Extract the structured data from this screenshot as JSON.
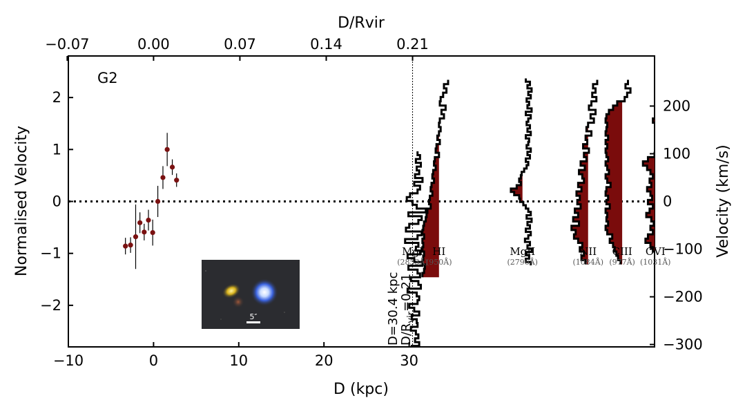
{
  "chart_data": {
    "type": "scatter",
    "panel_label": "G2",
    "xlabel_bottom": "D (kpc)",
    "xlabel_top": "D/Rvir",
    "ylabel_left": "Normalised Velocity",
    "ylabel_right": "Velocity (km/s)",
    "xlim": [
      -10,
      58.8
    ],
    "ylim_left": [
      -2.8,
      2.8
    ],
    "ylim_right": [
      -305,
      305
    ],
    "x_ticks_bottom": [
      -10,
      0,
      10,
      20,
      30
    ],
    "x_tick_labels_bottom": [
      "−10",
      "0",
      "10",
      "20",
      "30"
    ],
    "x_ticks_top": [
      -0.07,
      0.0,
      0.07,
      0.14,
      0.21
    ],
    "x_tick_labels_top": [
      "−0.07",
      "0.00",
      "0.07",
      "0.14",
      "0.21"
    ],
    "kpc_per_rvir_unit": 144.76,
    "y_ticks_left": [
      -2,
      -1,
      0,
      1,
      2
    ],
    "y_tick_labels_left": [
      "−2",
      "−1",
      "0",
      "1",
      "2"
    ],
    "y_ticks_right": [
      -300,
      -200,
      -100,
      0,
      100,
      200
    ],
    "y_tick_labels_right": [
      "−300",
      "−200",
      "−100",
      "0",
      "100",
      "200"
    ],
    "zero_line": 0,
    "rotation_curve": {
      "name": "rotation curve",
      "x": [
        -3.3,
        -2.7,
        -2.1,
        -1.6,
        -1.1,
        -0.6,
        -0.1,
        0.5,
        1.1,
        1.6,
        2.2,
        2.7
      ],
      "y": [
        -0.86,
        -0.84,
        -0.68,
        -0.41,
        -0.59,
        -0.36,
        -0.6,
        0.0,
        0.46,
        1.0,
        0.66,
        0.41
      ],
      "yerr": [
        0.16,
        0.15,
        0.62,
        0.2,
        0.16,
        0.2,
        0.25,
        0.3,
        0.22,
        0.32,
        0.15,
        0.13
      ],
      "color": "#7a1111"
    },
    "sightline": {
      "x": 30.4,
      "label_line1": "D=30.4 kpc",
      "label_line2_prefix": "D/R",
      "label_line2_sub": "vir",
      "label_line2_suffix": "=0.21"
    },
    "inset_image": {
      "scale_label": "5″"
    },
    "absorption_profiles": [
      {
        "ion": "MgI",
        "wavelength": "(2853Å)",
        "fill": false,
        "offset_kpc": 0.0,
        "v_start": 105,
        "v_step": 8,
        "flux": [
          0.3,
          0.45,
          0.2,
          0.5,
          0.25,
          0.4,
          0.15,
          0.6,
          0.1,
          0.45,
          0.3,
          -0.15,
          -0.35,
          0.0,
          0.25,
          0.8,
          -0.25,
          0.55,
          0.35,
          -0.2,
          -0.4,
          0.55,
          0.3,
          -0.45,
          0.35,
          0.2,
          0.45,
          -0.3,
          0.1,
          0.6,
          -0.25,
          0.3,
          0.45,
          -0.1,
          0.35,
          0.5,
          -0.3,
          0.25,
          0.4,
          0.3,
          -0.2,
          0.1,
          0.4,
          -0.05,
          0.25,
          0.3,
          -0.1,
          0.2,
          0.35,
          0.15,
          0.4,
          -0.05,
          0.25,
          0.3,
          0.1,
          0.2
        ]
      },
      {
        "ion": "HI",
        "wavelength": "(950Å)",
        "fill": true,
        "offset_kpc": 3.1,
        "v_start": 255,
        "v_step": 9,
        "flux": [
          0.55,
          0.3,
          0.45,
          0.25,
          0.1,
          0.05,
          0.4,
          0.15,
          0.3,
          0.05,
          0.0,
          0.1,
          0.0,
          -0.1,
          0.05,
          -0.15,
          -0.2,
          0.0,
          -0.25,
          -0.3,
          -0.2,
          -0.35,
          -0.4,
          -0.3,
          -0.45,
          -0.5,
          -0.4,
          -0.55,
          -0.6,
          -0.5,
          -0.7,
          -0.75,
          -0.8,
          -0.9,
          -0.95,
          -1.0,
          -0.9,
          -1.0,
          -0.95,
          -1.0,
          -0.9,
          -0.95,
          -1.0,
          -0.85,
          -0.9,
          -1.0
        ]
      },
      {
        "ion": "MgII",
        "wavelength": "(2796Å)",
        "fill": true,
        "offset_kpc": 12.9,
        "v_start": 258,
        "v_step": 7,
        "flux": [
          0.2,
          0.45,
          0.3,
          0.55,
          0.35,
          0.5,
          0.25,
          0.4,
          0.3,
          0.55,
          0.2,
          0.5,
          0.35,
          0.25,
          0.45,
          0.3,
          0.5,
          0.2,
          0.4,
          0.35,
          0.25,
          0.5,
          0.3,
          0.45,
          0.2,
          0.35,
          0.25,
          0.1,
          -0.05,
          -0.1,
          -0.2,
          -0.1,
          -0.35,
          -0.7,
          -0.5,
          -0.2,
          -0.15,
          0.05,
          0.2,
          0.35,
          0.5,
          0.25,
          0.55,
          0.3,
          0.45,
          0.2,
          0.5,
          0.35,
          0.15,
          0.45,
          0.3,
          0.55,
          0.25,
          0.4,
          0.2,
          0.5
        ]
      },
      {
        "ion": "NII",
        "wavelength": "(1084Å)",
        "fill": true,
        "offset_kpc": 20.6,
        "v_start": 255,
        "v_step": 9,
        "flux": [
          0.55,
          0.3,
          0.45,
          0.25,
          0.5,
          0.2,
          0.05,
          0.45,
          0.15,
          0.35,
          0.0,
          -0.1,
          0.2,
          -0.15,
          -0.05,
          -0.3,
          0.05,
          -0.25,
          -0.1,
          -0.45,
          -0.2,
          -0.55,
          -0.35,
          -0.25,
          -0.6,
          -0.4,
          -0.7,
          -0.5,
          -0.65,
          -0.45,
          -0.8,
          -0.6,
          -0.9,
          -0.55,
          -1.0,
          -0.75,
          -0.85,
          -0.6,
          -0.35,
          -0.5,
          -0.25,
          -0.4,
          -0.15
        ]
      },
      {
        "ion": "CIII",
        "wavelength": "(977Å)",
        "fill": true,
        "offset_kpc": 24.6,
        "v_start": 255,
        "v_step": 9,
        "flux": [
          0.35,
          0.2,
          0.5,
          0.3,
          0.15,
          -0.3,
          -0.55,
          -0.8,
          -0.95,
          -1.0,
          -0.9,
          -0.95,
          -1.0,
          -0.85,
          -1.0,
          -0.9,
          -1.0,
          -0.95,
          -0.85,
          -1.0,
          -0.9,
          -0.8,
          -1.0,
          -0.9,
          -0.7,
          -0.95,
          -1.0,
          -0.85,
          -0.95,
          -0.75,
          -1.0,
          -0.9,
          -0.95,
          -0.85,
          -1.0,
          -0.9,
          -0.6,
          -0.75,
          -0.55,
          -0.45,
          -0.35,
          -0.25,
          -0.1
        ]
      },
      {
        "ion": "OVI",
        "wavelength": "(1031Å)",
        "fill": true,
        "offset_kpc": 28.5,
        "v_start": 255,
        "v_step": 9,
        "flux": [
          0.45,
          0.25,
          0.5,
          0.3,
          0.45,
          0.15,
          0.4,
          0.2,
          0.05,
          -0.15,
          0.1,
          0.3,
          0.05,
          0.2,
          0.35,
          0.1,
          0.25,
          -0.05,
          -0.45,
          -0.75,
          -0.5,
          -0.3,
          -0.15,
          -0.35,
          -0.25,
          -0.5,
          -0.3,
          -0.2,
          -0.45,
          -0.15,
          -0.35,
          -0.55,
          -0.25,
          -0.1,
          -0.3,
          -0.15,
          -0.45,
          -0.6,
          -0.3,
          -0.15,
          0.05,
          0.2,
          0.35
        ]
      }
    ]
  }
}
